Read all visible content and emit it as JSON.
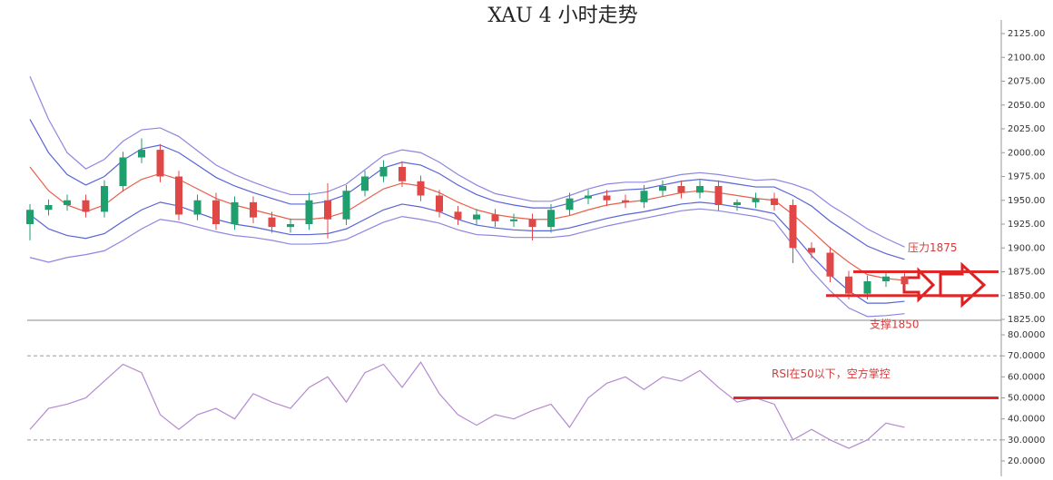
{
  "chart_data": [
    {
      "type": "candlestick",
      "title": "XAU 4 小时走势",
      "up_color": "#1f9e6e",
      "down_color": "#e04848",
      "open": [
        1925,
        1940,
        1945,
        1950,
        1938,
        1965,
        1995,
        2003,
        1975,
        1935,
        1950,
        1925,
        1948,
        1932,
        1922,
        1925,
        1950,
        1930,
        1960,
        1975,
        1985,
        1970,
        1955,
        1938,
        1930,
        1935,
        1928,
        1930,
        1922,
        1940,
        1952,
        1955,
        1950,
        1948,
        1960,
        1965,
        1958,
        1965,
        1945,
        1948,
        1952,
        1945,
        1900,
        1895,
        1870,
        1852,
        1865,
        1870
      ],
      "high": [
        1946,
        1951,
        1956,
        1956,
        1971,
        2001,
        2015,
        2009,
        1981,
        1956,
        1958,
        1954,
        1954,
        1938,
        1931,
        1958,
        1968,
        1966,
        1981,
        1992,
        1991,
        1976,
        1961,
        1944,
        1941,
        1941,
        1936,
        1936,
        1946,
        1958,
        1961,
        1961,
        1956,
        1966,
        1971,
        1971,
        1971,
        1971,
        1951,
        1958,
        1958,
        1951,
        1906,
        1901,
        1876,
        1871,
        1876,
        1876
      ],
      "low": [
        1908,
        1934,
        1939,
        1932,
        1932,
        1959,
        1989,
        1969,
        1929,
        1929,
        1919,
        1919,
        1926,
        1916,
        1916,
        1919,
        1910,
        1924,
        1954,
        1969,
        1964,
        1949,
        1932,
        1924,
        1924,
        1922,
        1922,
        1908,
        1916,
        1934,
        1946,
        1944,
        1942,
        1942,
        1954,
        1952,
        1952,
        1939,
        1939,
        1942,
        1939,
        1884,
        1889,
        1864,
        1846,
        1846,
        1859,
        1856
      ],
      "close": [
        1940,
        1945,
        1950,
        1938,
        1965,
        1995,
        2003,
        1975,
        1935,
        1950,
        1925,
        1948,
        1932,
        1922,
        1925,
        1950,
        1930,
        1960,
        1975,
        1985,
        1970,
        1955,
        1938,
        1930,
        1935,
        1928,
        1930,
        1922,
        1940,
        1952,
        1955,
        1950,
        1948,
        1960,
        1965,
        1958,
        1965,
        1945,
        1948,
        1952,
        1945,
        1900,
        1895,
        1870,
        1852,
        1865,
        1870,
        1862
      ],
      "overlays": [
        {
          "color": "#e8604a",
          "values": [
            1985,
            1960,
            1945,
            1938,
            1945,
            1960,
            1972,
            1978,
            1972,
            1962,
            1952,
            1945,
            1940,
            1935,
            1930,
            1930,
            1932,
            1938,
            1950,
            1962,
            1968,
            1965,
            1958,
            1948,
            1940,
            1935,
            1932,
            1930,
            1930,
            1934,
            1940,
            1945,
            1948,
            1950,
            1954,
            1958,
            1960,
            1958,
            1955,
            1952,
            1950,
            1935,
            1918,
            1900,
            1885,
            1872,
            1868,
            1866
          ]
        },
        {
          "color": "#5a63d8",
          "values": [
            2035,
            2000,
            1977,
            1966,
            1975,
            1992,
            2004,
            2008,
            2000,
            1987,
            1974,
            1965,
            1958,
            1952,
            1946,
            1946,
            1949,
            1956,
            1970,
            1984,
            1990,
            1987,
            1978,
            1966,
            1956,
            1949,
            1945,
            1942,
            1942,
            1947,
            1954,
            1959,
            1961,
            1962,
            1966,
            1970,
            1972,
            1970,
            1967,
            1964,
            1964,
            1955,
            1944,
            1928,
            1915,
            1902,
            1894,
            1888
          ]
        },
        {
          "color": "#5a63d8",
          "values": [
            1935,
            1920,
            1913,
            1910,
            1915,
            1928,
            1940,
            1948,
            1944,
            1937,
            1930,
            1925,
            1922,
            1918,
            1914,
            1914,
            1915,
            1920,
            1930,
            1940,
            1946,
            1943,
            1938,
            1930,
            1924,
            1921,
            1919,
            1918,
            1918,
            1921,
            1926,
            1931,
            1935,
            1938,
            1942,
            1946,
            1948,
            1946,
            1943,
            1940,
            1936,
            1915,
            1892,
            1872,
            1855,
            1842,
            1842,
            1844
          ]
        },
        {
          "color": "#8d86e0",
          "values": [
            2080,
            2035,
            2000,
            1983,
            1993,
            2012,
            2024,
            2026,
            2017,
            2002,
            1987,
            1977,
            1969,
            1962,
            1956,
            1956,
            1959,
            1967,
            1982,
            1997,
            2003,
            2000,
            1990,
            1977,
            1966,
            1957,
            1953,
            1949,
            1949,
            1955,
            1962,
            1967,
            1969,
            1969,
            1973,
            1977,
            1979,
            1977,
            1974,
            1971,
            1972,
            1967,
            1960,
            1945,
            1933,
            1920,
            1910,
            1901
          ]
        },
        {
          "color": "#8d86e0",
          "values": [
            1890,
            1885,
            1890,
            1893,
            1897,
            1908,
            1920,
            1930,
            1927,
            1922,
            1917,
            1913,
            1911,
            1908,
            1904,
            1904,
            1905,
            1909,
            1918,
            1927,
            1933,
            1930,
            1926,
            1919,
            1914,
            1913,
            1911,
            1911,
            1911,
            1913,
            1918,
            1923,
            1927,
            1931,
            1935,
            1939,
            1941,
            1939,
            1936,
            1933,
            1928,
            1903,
            1876,
            1855,
            1837,
            1828,
            1829,
            1831
          ]
        }
      ],
      "ylim": [
        1825,
        2125
      ],
      "yticks": [
        {
          "value": 1825,
          "label": "1825.00"
        },
        {
          "value": 1850,
          "label": "1850.00"
        },
        {
          "value": 1875,
          "label": "1875.00"
        },
        {
          "value": 1900,
          "label": "1900.00"
        },
        {
          "value": 1925,
          "label": "1925.00"
        },
        {
          "value": 1950,
          "label": "1950.00"
        },
        {
          "value": 1975,
          "label": "1975.00"
        },
        {
          "value": 2000,
          "label": "2000.00"
        },
        {
          "value": 2025,
          "label": "2025.00"
        },
        {
          "value": 2050,
          "label": "2050.00"
        },
        {
          "value": 2075,
          "label": "2075.00"
        },
        {
          "value": 2100,
          "label": "2100.00"
        },
        {
          "value": 2125,
          "label": "2125.00"
        }
      ],
      "annotations": [
        {
          "text": "压力1875",
          "value": 1875
        },
        {
          "text": "支撑1850",
          "value": 1850
        }
      ]
    },
    {
      "type": "line",
      "color": "#b58ad0",
      "values": [
        35,
        45,
        47,
        50,
        58,
        66,
        62,
        42,
        35,
        42,
        45,
        40,
        52,
        48,
        45,
        55,
        60,
        48,
        62,
        66,
        55,
        67,
        52,
        42,
        37,
        42,
        40,
        44,
        47,
        36,
        50,
        57,
        60,
        54,
        60,
        58,
        63,
        55,
        48,
        50,
        47,
        30,
        35,
        30,
        26,
        30,
        38,
        36
      ],
      "ylim": [
        20,
        80
      ],
      "yticks": [
        {
          "value": 20,
          "label": "20.0000"
        },
        {
          "value": 30,
          "label": "30.0000"
        },
        {
          "value": 40,
          "label": "40.0000"
        },
        {
          "value": 50,
          "label": "50.0000"
        },
        {
          "value": 60,
          "label": "60.0000"
        },
        {
          "value": 70,
          "label": "70.0000"
        },
        {
          "value": 80,
          "label": "80.0000"
        }
      ],
      "reference_lines": [
        70,
        30
      ],
      "annotations": [
        {
          "text": "RSI在50以下，空方掌控",
          "value": 50
        }
      ]
    }
  ]
}
